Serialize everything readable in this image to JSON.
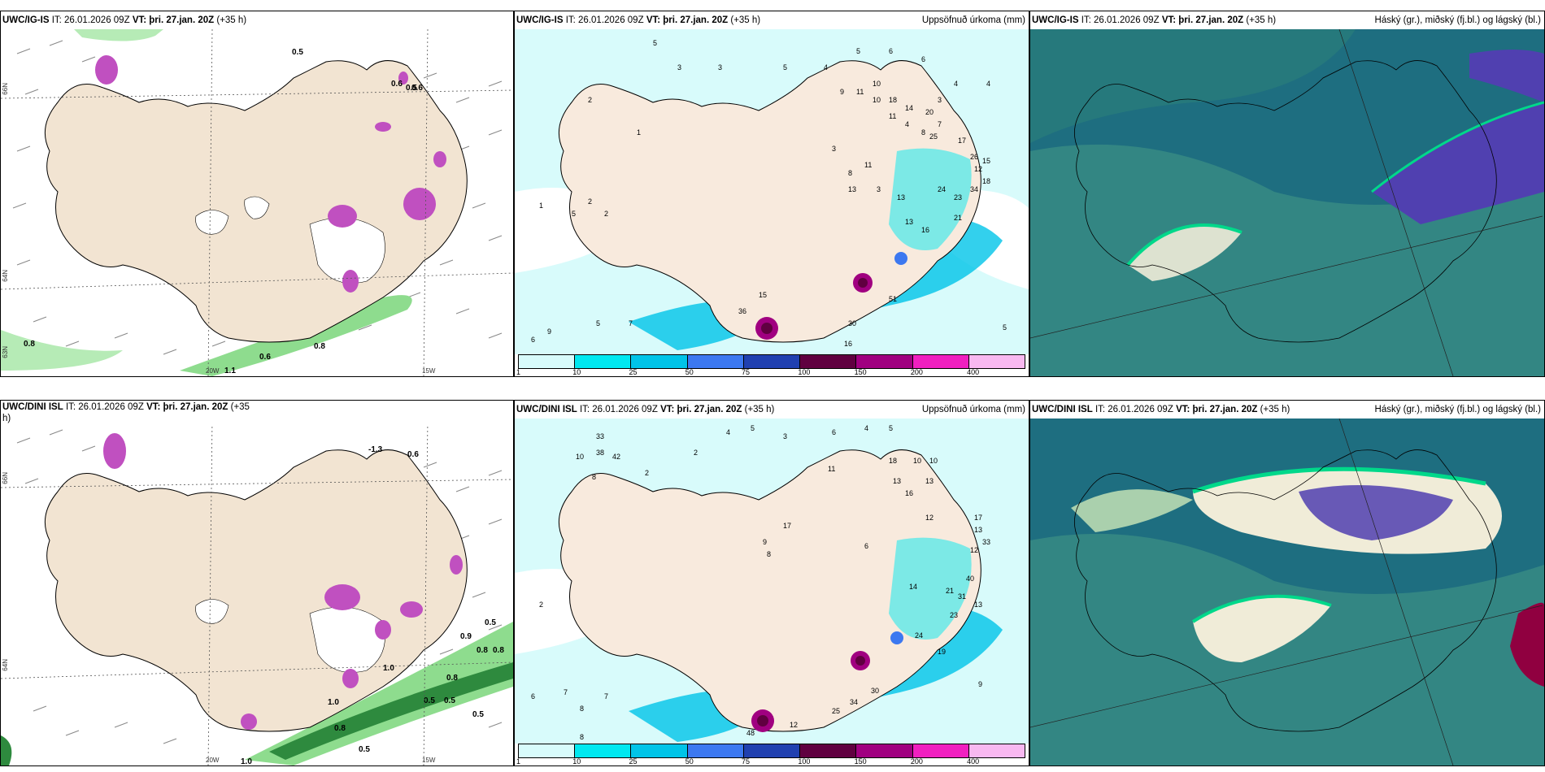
{
  "panels": {
    "top_left": {
      "model": "UWC/IG-IS",
      "init": "IT: 26.01.2026 09Z",
      "valid": "VT: þri. 27.jan. 20Z",
      "lead": "(+35 h)",
      "product": ""
    },
    "top_mid": {
      "model": "UWC/IG-IS",
      "init": "IT: 26.01.2026 09Z",
      "valid": "VT: þri. 27.jan. 20Z",
      "lead": "(+35 h)",
      "product": "Uppsöfnuð úrkoma (mm)"
    },
    "top_right": {
      "model": "UWC/IG-IS",
      "init": "IT: 26.01.2026 09Z",
      "valid": "VT: þri. 27.jan. 20Z",
      "lead": "(+35 h)",
      "product": "Háský (gr.), miðský (fj.bl.) og lágský (bl.)"
    },
    "bot_left": {
      "model": "UWC/DINI ISL",
      "init": "IT: 26.01.2026 09Z",
      "valid": "VT: þri. 27.jan. 20Z",
      "lead": "(+35",
      "lead2": "h)",
      "product": ""
    },
    "bot_mid": {
      "model": "UWC/DINI ISL",
      "init": "IT: 26.01.2026 09Z",
      "valid": "VT: þri. 27.jan. 20Z",
      "lead": "(+35 h)",
      "product": "Uppsöfnuð úrkoma (mm)"
    },
    "bot_right": {
      "model": "UWC/DINI ISL",
      "init": "IT: 26.01.2026 09Z",
      "valid": "VT: þri. 27.jan. 20Z",
      "lead": "(+35 h)",
      "product": "Háský (gr.), miðský (fj.bl.) og lágský (bl.)"
    }
  },
  "axis_labels": {
    "lat_66": "66N",
    "lat_64": "64N",
    "lat_63": "63N",
    "lon_20": "20W",
    "lon_15": "15W"
  },
  "colorbar": {
    "labels": [
      "1",
      "10",
      "25",
      "50",
      "75",
      "100",
      "150",
      "200",
      "400"
    ],
    "colors": [
      "#d8fbfb",
      "#00e8f0",
      "#00c4e8",
      "#3c78f0",
      "#2040b0",
      "#600040",
      "#a00080",
      "#f020c0",
      "#f8b8f0"
    ]
  },
  "top_left_labels": [
    "0.5",
    "0.6",
    "0.5",
    "0.6",
    "0.8",
    "0.6",
    "0.8",
    "1.1"
  ],
  "bot_left_labels": [
    "-1.3",
    "0.6",
    "0.9",
    "0.5",
    "0.8",
    "0.8",
    "0.8",
    "0.5",
    "0.5",
    "1.0",
    "1.0",
    "0.8",
    "0.5",
    "1.0",
    "0.5"
  ],
  "top_mid_numbers": [
    "5",
    "3",
    "3",
    "5",
    "4",
    "5",
    "6",
    "6",
    "4",
    "4",
    "9",
    "11",
    "10",
    "10",
    "18",
    "3",
    "4",
    "8",
    "7",
    "11",
    "14",
    "20",
    "25",
    "17",
    "12",
    "3",
    "8",
    "11",
    "13",
    "3",
    "13",
    "23",
    "24",
    "34",
    "18",
    "13",
    "16",
    "26",
    "15",
    "21",
    "51",
    "30",
    "16",
    "5",
    "9",
    "6",
    "5",
    "7",
    "15",
    "36",
    "1",
    "5",
    "2",
    "2",
    "2",
    "1"
  ],
  "bot_mid_numbers": [
    "4",
    "5",
    "3",
    "6",
    "4",
    "5",
    "33",
    "10",
    "38",
    "42",
    "2",
    "2",
    "8",
    "11",
    "18",
    "10",
    "10",
    "13",
    "16",
    "13",
    "17",
    "9",
    "8",
    "12",
    "17",
    "13",
    "6",
    "12",
    "33",
    "40",
    "19",
    "31",
    "21",
    "13",
    "23",
    "14",
    "24",
    "30",
    "34",
    "25",
    "12",
    "48",
    "9",
    "8",
    "7",
    "7",
    "6",
    "8",
    "2"
  ],
  "colors": {
    "land": "#f2e4d2",
    "pale_cyan": "#d8fbfb",
    "cloud_bg": "#1e6e80",
    "cloud_mid": "#3b8f84"
  }
}
